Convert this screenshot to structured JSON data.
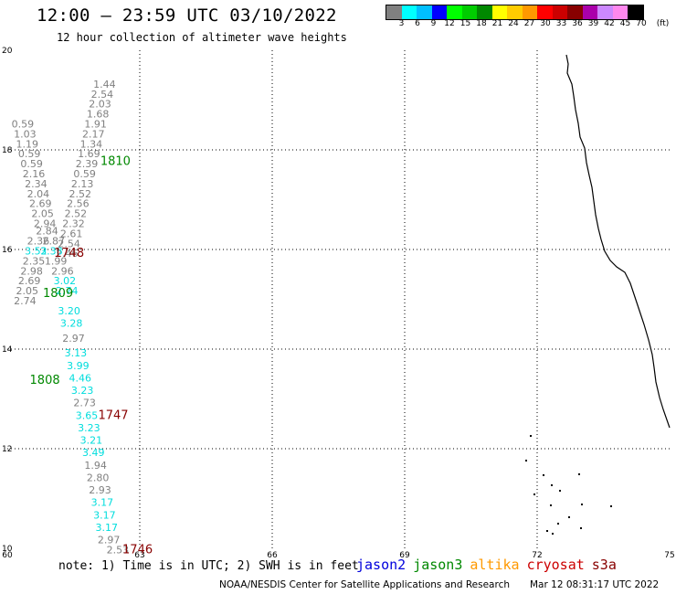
{
  "header": {
    "title": "12:00 – 23:59 UTC 03/10/2022",
    "subtitle": "12 hour collection of altimeter wave heights"
  },
  "legend": {
    "unit": "(ft)",
    "colors": [
      "#808080",
      "#00ffff",
      "#00bfff",
      "#0000ff",
      "#00ff00",
      "#00cc00",
      "#008800",
      "#ffff00",
      "#ffcc00",
      "#ff9900",
      "#ff0000",
      "#cc0000",
      "#880000",
      "#aa00aa",
      "#cc88ff",
      "#ff88ee",
      "#000000"
    ],
    "labels": [
      "3",
      "6",
      "9",
      "12",
      "15",
      "18",
      "21",
      "24",
      "27",
      "30",
      "33",
      "36",
      "39",
      "42",
      "45",
      "70"
    ]
  },
  "axes": {
    "x_ticks": [
      "60",
      "63",
      "66",
      "69",
      "72",
      "75"
    ],
    "y_ticks": [
      "10",
      "12",
      "14",
      "16",
      "18",
      "20"
    ],
    "x_range": [
      60,
      75
    ],
    "y_range": [
      10,
      20
    ]
  },
  "observations": [
    {
      "lon": 62.2,
      "lat": 19.25,
      "v": "1.44",
      "c": "#808080"
    },
    {
      "lon": 62.15,
      "lat": 19.05,
      "v": "2.54",
      "c": "#808080"
    },
    {
      "lon": 62.1,
      "lat": 18.85,
      "v": "2.03",
      "c": "#808080"
    },
    {
      "lon": 62.05,
      "lat": 18.65,
      "v": "1.68",
      "c": "#808080"
    },
    {
      "lon": 62.0,
      "lat": 18.45,
      "v": "1.91",
      "c": "#808080"
    },
    {
      "lon": 61.95,
      "lat": 18.25,
      "v": "2.17",
      "c": "#808080"
    },
    {
      "lon": 61.9,
      "lat": 18.05,
      "v": "1.34",
      "c": "#808080"
    },
    {
      "lon": 61.85,
      "lat": 17.85,
      "v": "1.69",
      "c": "#808080"
    },
    {
      "lon": 61.8,
      "lat": 17.65,
      "v": "2.39",
      "c": "#808080"
    },
    {
      "lon": 61.75,
      "lat": 17.45,
      "v": "0.59",
      "c": "#808080"
    },
    {
      "lon": 61.7,
      "lat": 17.25,
      "v": "2.13",
      "c": "#808080"
    },
    {
      "lon": 61.65,
      "lat": 17.05,
      "v": "2.52",
      "c": "#808080"
    },
    {
      "lon": 61.6,
      "lat": 16.85,
      "v": "2.56",
      "c": "#808080"
    },
    {
      "lon": 61.55,
      "lat": 16.65,
      "v": "2.52",
      "c": "#808080"
    },
    {
      "lon": 61.5,
      "lat": 16.45,
      "v": "2.32",
      "c": "#808080"
    },
    {
      "lon": 61.45,
      "lat": 16.25,
      "v": "2.61",
      "c": "#808080"
    },
    {
      "lon": 61.4,
      "lat": 16.05,
      "v": "2.54",
      "c": "#808080"
    },
    {
      "lon": 61.35,
      "lat": 15.85,
      "v": "2.46",
      "c": "#808080"
    },
    {
      "lon": 60.35,
      "lat": 18.45,
      "v": "0.59",
      "c": "#808080"
    },
    {
      "lon": 60.4,
      "lat": 18.25,
      "v": "1.03",
      "c": "#808080"
    },
    {
      "lon": 60.45,
      "lat": 18.05,
      "v": "1.19",
      "c": "#808080"
    },
    {
      "lon": 60.5,
      "lat": 17.85,
      "v": "0.59",
      "c": "#808080"
    },
    {
      "lon": 60.55,
      "lat": 17.65,
      "v": "0.59",
      "c": "#808080"
    },
    {
      "lon": 60.6,
      "lat": 17.45,
      "v": "2.16",
      "c": "#808080"
    },
    {
      "lon": 60.65,
      "lat": 17.25,
      "v": "2.34",
      "c": "#808080"
    },
    {
      "lon": 60.7,
      "lat": 17.05,
      "v": "2.04",
      "c": "#808080"
    },
    {
      "lon": 60.75,
      "lat": 16.85,
      "v": "2.69",
      "c": "#808080"
    },
    {
      "lon": 60.8,
      "lat": 16.65,
      "v": "2.05",
      "c": "#808080"
    },
    {
      "lon": 60.85,
      "lat": 16.45,
      "v": "2.94",
      "c": "#808080"
    },
    {
      "lon": 60.9,
      "lat": 16.3,
      "v": "2.84",
      "c": "#808080"
    },
    {
      "lon": 60.7,
      "lat": 16.1,
      "v": "2.36",
      "c": "#808080"
    },
    {
      "lon": 61.05,
      "lat": 16.1,
      "v": "2.87",
      "c": "#808080"
    },
    {
      "lon": 60.65,
      "lat": 15.9,
      "v": "3.52",
      "c": "#00dddd"
    },
    {
      "lon": 61.0,
      "lat": 15.9,
      "v": "3.38",
      "c": "#00dddd"
    },
    {
      "lon": 60.6,
      "lat": 15.7,
      "v": "2.35",
      "c": "#808080"
    },
    {
      "lon": 61.1,
      "lat": 15.7,
      "v": "1.99",
      "c": "#808080"
    },
    {
      "lon": 60.55,
      "lat": 15.5,
      "v": "2.98",
      "c": "#808080"
    },
    {
      "lon": 61.25,
      "lat": 15.5,
      "v": "2.96",
      "c": "#808080"
    },
    {
      "lon": 60.5,
      "lat": 15.3,
      "v": "2.69",
      "c": "#808080"
    },
    {
      "lon": 61.3,
      "lat": 15.3,
      "v": "3.02",
      "c": "#00dddd"
    },
    {
      "lon": 60.45,
      "lat": 15.1,
      "v": "2.05",
      "c": "#808080"
    },
    {
      "lon": 61.35,
      "lat": 15.1,
      "v": "2.74",
      "c": "#00dddd"
    },
    {
      "lon": 60.4,
      "lat": 14.9,
      "v": "2.74",
      "c": "#808080"
    },
    {
      "lon": 61.4,
      "lat": 14.7,
      "v": "3.20",
      "c": "#00dddd"
    },
    {
      "lon": 61.45,
      "lat": 14.45,
      "v": "3.28",
      "c": "#00dddd"
    },
    {
      "lon": 61.5,
      "lat": 14.15,
      "v": "2.97",
      "c": "#808080"
    },
    {
      "lon": 61.55,
      "lat": 13.85,
      "v": "3.13",
      "c": "#00dddd"
    },
    {
      "lon": 61.6,
      "lat": 13.6,
      "v": "3.99",
      "c": "#00dddd"
    },
    {
      "lon": 61.65,
      "lat": 13.35,
      "v": "4.46",
      "c": "#00dddd"
    },
    {
      "lon": 61.7,
      "lat": 13.1,
      "v": "3.23",
      "c": "#00dddd"
    },
    {
      "lon": 61.75,
      "lat": 12.85,
      "v": "2.73",
      "c": "#808080"
    },
    {
      "lon": 61.8,
      "lat": 12.6,
      "v": "3.65",
      "c": "#00dddd"
    },
    {
      "lon": 61.85,
      "lat": 12.35,
      "v": "3.23",
      "c": "#00dddd"
    },
    {
      "lon": 61.9,
      "lat": 12.1,
      "v": "3.21",
      "c": "#00dddd"
    },
    {
      "lon": 61.95,
      "lat": 11.85,
      "v": "3.49",
      "c": "#00dddd"
    },
    {
      "lon": 62.0,
      "lat": 11.6,
      "v": "1.94",
      "c": "#808080"
    },
    {
      "lon": 62.05,
      "lat": 11.35,
      "v": "2.80",
      "c": "#808080"
    },
    {
      "lon": 62.1,
      "lat": 11.1,
      "v": "2.93",
      "c": "#808080"
    },
    {
      "lon": 62.15,
      "lat": 10.85,
      "v": "3.17",
      "c": "#00dddd"
    },
    {
      "lon": 62.2,
      "lat": 10.6,
      "v": "3.17",
      "c": "#00dddd"
    },
    {
      "lon": 62.25,
      "lat": 10.35,
      "v": "3.17",
      "c": "#00dddd"
    },
    {
      "lon": 62.3,
      "lat": 10.1,
      "v": "2.97",
      "c": "#808080"
    },
    {
      "lon": 62.5,
      "lat": 9.9,
      "v": "2.53",
      "c": "#808080"
    }
  ],
  "pass_labels": [
    {
      "lon": 62.45,
      "lat": 17.7,
      "t": "1810",
      "c": "#008800"
    },
    {
      "lon": 61.4,
      "lat": 15.85,
      "t": "1748",
      "c": "#880000"
    },
    {
      "lon": 61.15,
      "lat": 15.05,
      "t": "1809",
      "c": "#008800"
    },
    {
      "lon": 60.85,
      "lat": 13.3,
      "t": "1808",
      "c": "#008800"
    },
    {
      "lon": 62.4,
      "lat": 12.6,
      "t": "1747",
      "c": "#880000"
    },
    {
      "lon": 62.95,
      "lat": 9.9,
      "t": "1746",
      "c": "#880000"
    }
  ],
  "footer": {
    "note": "note:  1) Time is in UTC; 2) SWH is in feet",
    "satellites": [
      {
        "name": "jason2",
        "color": "#0000dd"
      },
      {
        "name": "jason3",
        "color": "#008800"
      },
      {
        "name": "altika",
        "color": "#ff9900"
      },
      {
        "name": "cryosat",
        "color": "#cc0000"
      },
      {
        "name": "s3a",
        "color": "#880000"
      }
    ],
    "credit": "NOAA/NESDIS Center for Satellite Applications and Research",
    "generated": "Mar 12 08:31:17 UTC 2022"
  }
}
